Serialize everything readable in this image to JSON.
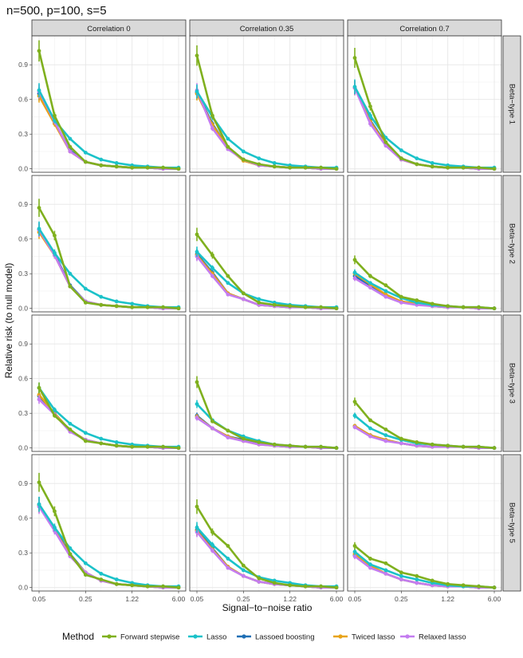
{
  "chart_data": {
    "type": "line",
    "title": "n=500, p=100, s=5",
    "xlabel": "Signal−to−noise ratio",
    "ylabel": "Relative risk (to null model)",
    "x_ticks": [
      "0.05",
      "0.25",
      "1.22",
      "6.00"
    ],
    "y_ticks": [
      "0.0",
      "0.3",
      "0.6",
      "0.9"
    ],
    "ylim": [
      -0.03,
      1.15
    ],
    "n_snr_points": 10,
    "grid": true,
    "legend_position": "bottom",
    "legend_title": "Method",
    "col_facets": [
      "Correlation 0",
      "Correlation 0.35",
      "Correlation 0.7"
    ],
    "row_facets": [
      "Beta−type 1",
      "Beta−type 2",
      "Beta−type 3",
      "Beta−type 5"
    ],
    "methods": [
      {
        "name": "Forward stepwise",
        "color": "#7fb01e"
      },
      {
        "name": "Lasso",
        "color": "#1bc2c9"
      },
      {
        "name": "Lassoed boosting",
        "color": "#1f6fb5"
      },
      {
        "name": "Twiced lasso",
        "color": "#e8a317"
      },
      {
        "name": "Relaxed lasso",
        "color": "#c47cf0"
      }
    ],
    "panels": [
      [
        {
          "series": [
            [
              1.02,
              0.46,
              0.19,
              0.06,
              0.03,
              0.02,
              0.01,
              0.01,
              0.01,
              0.0
            ],
            [
              0.68,
              0.42,
              0.26,
              0.14,
              0.08,
              0.05,
              0.03,
              0.02,
              0.01,
              0.01
            ],
            [
              0.65,
              0.4,
              0.16,
              0.06,
              0.03,
              0.02,
              0.01,
              0.01,
              0.0,
              0.0
            ],
            [
              0.63,
              0.39,
              0.15,
              0.06,
              0.03,
              0.02,
              0.01,
              0.01,
              0.0,
              0.0
            ],
            [
              0.67,
              0.41,
              0.15,
              0.06,
              0.03,
              0.02,
              0.01,
              0.01,
              0.0,
              0.0
            ]
          ]
        },
        {
          "series": [
            [
              0.98,
              0.46,
              0.19,
              0.08,
              0.04,
              0.02,
              0.01,
              0.01,
              0.01,
              0.0
            ],
            [
              0.67,
              0.45,
              0.26,
              0.15,
              0.09,
              0.05,
              0.03,
              0.02,
              0.01,
              0.01
            ],
            [
              0.66,
              0.39,
              0.18,
              0.08,
              0.03,
              0.02,
              0.01,
              0.01,
              0.0,
              0.0
            ],
            [
              0.65,
              0.38,
              0.18,
              0.07,
              0.03,
              0.02,
              0.01,
              0.01,
              0.0,
              0.0
            ],
            [
              0.68,
              0.35,
              0.17,
              0.08,
              0.03,
              0.02,
              0.01,
              0.01,
              0.0,
              0.0
            ]
          ]
        },
        {
          "series": [
            [
              0.96,
              0.54,
              0.23,
              0.09,
              0.04,
              0.02,
              0.01,
              0.01,
              0.01,
              0.0
            ],
            [
              0.71,
              0.46,
              0.27,
              0.16,
              0.09,
              0.05,
              0.03,
              0.02,
              0.01,
              0.01
            ],
            [
              0.7,
              0.42,
              0.22,
              0.09,
              0.04,
              0.02,
              0.01,
              0.01,
              0.0,
              0.0
            ],
            [
              0.7,
              0.41,
              0.21,
              0.08,
              0.04,
              0.02,
              0.01,
              0.01,
              0.0,
              0.0
            ],
            [
              0.7,
              0.39,
              0.2,
              0.08,
              0.04,
              0.02,
              0.01,
              0.01,
              0.0,
              0.0
            ]
          ]
        }
      ],
      [
        {
          "series": [
            [
              0.87,
              0.63,
              0.19,
              0.05,
              0.03,
              0.02,
              0.01,
              0.01,
              0.01,
              0.0
            ],
            [
              0.69,
              0.48,
              0.3,
              0.17,
              0.1,
              0.06,
              0.04,
              0.02,
              0.01,
              0.01
            ],
            [
              0.68,
              0.47,
              0.2,
              0.06,
              0.03,
              0.02,
              0.01,
              0.01,
              0.0,
              0.0
            ],
            [
              0.66,
              0.46,
              0.19,
              0.06,
              0.03,
              0.02,
              0.01,
              0.01,
              0.0,
              0.0
            ],
            [
              0.68,
              0.46,
              0.19,
              0.06,
              0.03,
              0.02,
              0.01,
              0.01,
              0.0,
              0.0
            ]
          ]
        },
        {
          "series": [
            [
              0.64,
              0.46,
              0.28,
              0.13,
              0.05,
              0.03,
              0.02,
              0.01,
              0.01,
              0.0
            ],
            [
              0.49,
              0.35,
              0.22,
              0.13,
              0.08,
              0.05,
              0.03,
              0.02,
              0.01,
              0.01
            ],
            [
              0.47,
              0.31,
              0.13,
              0.08,
              0.03,
              0.02,
              0.01,
              0.01,
              0.0,
              0.0
            ],
            [
              0.46,
              0.3,
              0.13,
              0.08,
              0.03,
              0.02,
              0.01,
              0.01,
              0.0,
              0.0
            ],
            [
              0.45,
              0.28,
              0.12,
              0.08,
              0.03,
              0.02,
              0.01,
              0.01,
              0.0,
              0.0
            ]
          ]
        },
        {
          "series": [
            [
              0.42,
              0.28,
              0.2,
              0.1,
              0.07,
              0.04,
              0.02,
              0.01,
              0.01,
              0.0
            ],
            [
              0.31,
              0.22,
              0.15,
              0.09,
              0.05,
              0.03,
              0.02,
              0.01,
              0.01,
              0.0
            ],
            [
              0.28,
              0.2,
              0.12,
              0.06,
              0.04,
              0.02,
              0.01,
              0.01,
              0.0,
              0.0
            ],
            [
              0.3,
              0.21,
              0.12,
              0.06,
              0.04,
              0.02,
              0.01,
              0.01,
              0.0,
              0.0
            ],
            [
              0.26,
              0.18,
              0.1,
              0.05,
              0.03,
              0.02,
              0.01,
              0.01,
              0.0,
              0.0
            ]
          ]
        }
      ],
      [
        {
          "series": [
            [
              0.52,
              0.28,
              0.16,
              0.06,
              0.04,
              0.02,
              0.01,
              0.01,
              0.01,
              0.0
            ],
            [
              0.52,
              0.33,
              0.21,
              0.13,
              0.08,
              0.05,
              0.03,
              0.02,
              0.01,
              0.01
            ],
            [
              0.45,
              0.3,
              0.15,
              0.07,
              0.04,
              0.02,
              0.01,
              0.01,
              0.0,
              0.0
            ],
            [
              0.46,
              0.3,
              0.15,
              0.07,
              0.04,
              0.02,
              0.01,
              0.01,
              0.0,
              0.0
            ],
            [
              0.42,
              0.29,
              0.14,
              0.07,
              0.04,
              0.02,
              0.01,
              0.01,
              0.0,
              0.0
            ]
          ]
        },
        {
          "series": [
            [
              0.57,
              0.23,
              0.15,
              0.08,
              0.05,
              0.03,
              0.02,
              0.01,
              0.01,
              0.0
            ],
            [
              0.38,
              0.24,
              0.15,
              0.1,
              0.06,
              0.03,
              0.02,
              0.01,
              0.01,
              0.0
            ],
            [
              0.28,
              0.17,
              0.1,
              0.07,
              0.04,
              0.02,
              0.01,
              0.01,
              0.0,
              0.0
            ],
            [
              0.27,
              0.17,
              0.1,
              0.06,
              0.03,
              0.02,
              0.01,
              0.01,
              0.0,
              0.0
            ],
            [
              0.26,
              0.17,
              0.09,
              0.06,
              0.03,
              0.02,
              0.01,
              0.01,
              0.0,
              0.0
            ]
          ]
        },
        {
          "series": [
            [
              0.4,
              0.24,
              0.16,
              0.08,
              0.05,
              0.03,
              0.02,
              0.01,
              0.01,
              0.0
            ],
            [
              0.28,
              0.17,
              0.11,
              0.07,
              0.04,
              0.03,
              0.02,
              0.01,
              0.01,
              0.0
            ],
            [
              0.19,
              0.11,
              0.07,
              0.04,
              0.02,
              0.01,
              0.01,
              0.01,
              0.0,
              0.0
            ],
            [
              0.19,
              0.11,
              0.07,
              0.04,
              0.02,
              0.01,
              0.01,
              0.01,
              0.0,
              0.0
            ],
            [
              0.18,
              0.1,
              0.06,
              0.04,
              0.02,
              0.01,
              0.01,
              0.01,
              0.0,
              0.0
            ]
          ]
        }
      ],
      [
        {
          "series": [
            [
              0.91,
              0.66,
              0.29,
              0.11,
              0.07,
              0.03,
              0.02,
              0.01,
              0.01,
              0.0
            ],
            [
              0.72,
              0.52,
              0.34,
              0.21,
              0.12,
              0.07,
              0.04,
              0.02,
              0.01,
              0.01
            ],
            [
              0.72,
              0.51,
              0.29,
              0.13,
              0.06,
              0.03,
              0.02,
              0.01,
              0.0,
              0.0
            ],
            [
              0.71,
              0.5,
              0.28,
              0.13,
              0.06,
              0.03,
              0.02,
              0.01,
              0.0,
              0.0
            ],
            [
              0.7,
              0.49,
              0.27,
              0.13,
              0.06,
              0.03,
              0.02,
              0.01,
              0.0,
              0.0
            ]
          ]
        },
        {
          "series": [
            [
              0.7,
              0.48,
              0.36,
              0.19,
              0.08,
              0.04,
              0.02,
              0.01,
              0.01,
              0.0
            ],
            [
              0.52,
              0.37,
              0.25,
              0.15,
              0.09,
              0.06,
              0.04,
              0.02,
              0.01,
              0.01
            ],
            [
              0.5,
              0.34,
              0.18,
              0.1,
              0.05,
              0.03,
              0.02,
              0.01,
              0.0,
              0.0
            ],
            [
              0.49,
              0.33,
              0.18,
              0.1,
              0.05,
              0.03,
              0.02,
              0.01,
              0.0,
              0.0
            ],
            [
              0.48,
              0.32,
              0.17,
              0.1,
              0.05,
              0.03,
              0.02,
              0.01,
              0.0,
              0.0
            ]
          ]
        },
        {
          "series": [
            [
              0.36,
              0.25,
              0.21,
              0.13,
              0.1,
              0.06,
              0.03,
              0.02,
              0.01,
              0.0
            ],
            [
              0.31,
              0.2,
              0.15,
              0.1,
              0.07,
              0.04,
              0.02,
              0.01,
              0.01,
              0.0
            ],
            [
              0.28,
              0.18,
              0.12,
              0.07,
              0.04,
              0.02,
              0.01,
              0.01,
              0.0,
              0.0
            ],
            [
              0.29,
              0.19,
              0.12,
              0.07,
              0.04,
              0.02,
              0.01,
              0.01,
              0.0,
              0.0
            ],
            [
              0.27,
              0.17,
              0.12,
              0.07,
              0.04,
              0.02,
              0.01,
              0.01,
              0.0,
              0.0
            ]
          ]
        }
      ]
    ]
  }
}
